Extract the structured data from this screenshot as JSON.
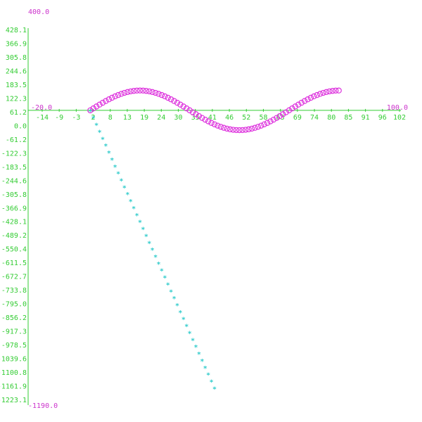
{
  "chart_data": {
    "type": "scatter",
    "title": "",
    "xlabel": "",
    "ylabel": "",
    "xlim": [
      -20.0,
      100.0
    ],
    "ylim": [
      -1190.0,
      400.0
    ],
    "range_labels": {
      "x_min": "-20.0",
      "x_max": "100.0",
      "y_max": "400.0",
      "y_min": "-1190.0"
    },
    "x_ticks": [
      "-14",
      "-9",
      "-3",
      "2",
      "8",
      "13",
      "19",
      "24",
      "30",
      "35",
      "41",
      "46",
      "52",
      "58",
      "63",
      "69",
      "74",
      "80",
      "85",
      "91",
      "96",
      "102"
    ],
    "y_ticks": [
      "428.1",
      "366.9",
      "305.8",
      "244.6",
      "183.5",
      "122.3",
      "61.2",
      "0.0",
      "-61.2",
      "-122.3",
      "-183.5",
      "-244.6",
      "-305.8",
      "-366.9",
      "-428.1",
      "-489.2",
      "-550.4",
      "-611.5",
      "-672.7",
      "-733.8",
      "-795.0",
      "-856.2",
      "-917.3",
      "-978.5",
      "-1039.6",
      "-1100.8",
      "-1161.9",
      "-1223.1"
    ],
    "grid": false,
    "series": [
      {
        "marker": "circle",
        "color": "#dd33dd",
        "x_start": 0,
        "x_end": 80,
        "x_step": 1,
        "amplitude": 80,
        "period": 64
      },
      {
        "marker": "asterisk",
        "color": "#33cccc",
        "x_start": 0,
        "x_end": 40,
        "x_step": 1,
        "slope": -28
      }
    ],
    "colors": {
      "axis": "#33cc33",
      "ticks": "#33cc33",
      "range": "#cc33cc"
    }
  }
}
